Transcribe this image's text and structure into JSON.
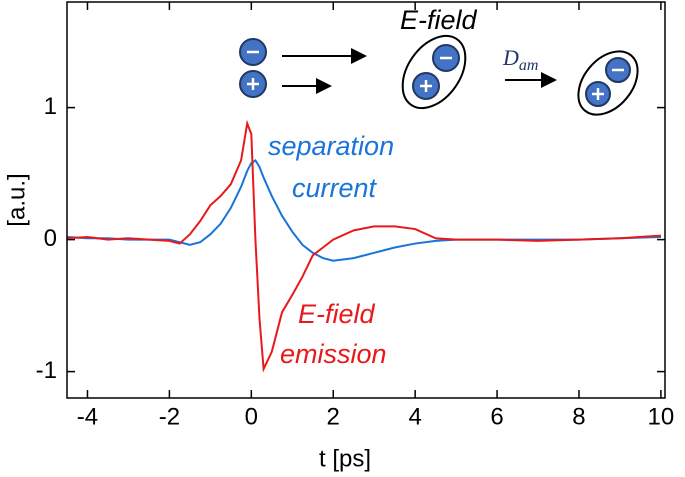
{
  "chart_data": {
    "type": "line",
    "xlabel": "t [ps]",
    "ylabel": "[a.u.]",
    "x": [
      -4.5,
      -4,
      -3.5,
      -3,
      -2.5,
      -2,
      -1.75,
      -1.5,
      -1.25,
      -1,
      -0.75,
      -0.5,
      -0.25,
      -0.1,
      0,
      0.1,
      0.2,
      0.3,
      0.5,
      0.75,
      1,
      1.25,
      1.5,
      1.75,
      2,
      2.5,
      3,
      3.5,
      4,
      4.5,
      5,
      6,
      7,
      8,
      9,
      10
    ],
    "series": [
      {
        "color": "#1a73d9",
        "values": [
          0.02,
          0.01,
          0.01,
          0,
          0,
          0,
          -0.02,
          -0.04,
          -0.02,
          0.04,
          0.12,
          0.24,
          0.4,
          0.52,
          0.58,
          0.6,
          0.55,
          0.47,
          0.33,
          0.18,
          0.06,
          -0.04,
          -0.1,
          -0.14,
          -0.16,
          -0.14,
          -0.1,
          -0.06,
          -0.03,
          -0.01,
          0,
          0,
          0,
          0,
          0.01,
          0.02
        ]
      },
      {
        "color": "#e8191c",
        "values": [
          0.01,
          0.02,
          0,
          0.01,
          0,
          -0.01,
          -0.03,
          0.04,
          0.14,
          0.26,
          0.33,
          0.42,
          0.6,
          0.88,
          0.8,
          0,
          -0.6,
          -0.98,
          -0.85,
          -0.55,
          -0.42,
          -0.28,
          -0.12,
          -0.06,
          0,
          0.07,
          0.1,
          0.1,
          0.08,
          0.01,
          0,
          0,
          -0.01,
          0,
          0.01,
          0.03
        ]
      }
    ],
    "xlim": [
      -4.5,
      10.1
    ],
    "ylim": [
      -1.2,
      1.8
    ],
    "xticks": [
      -4,
      -2,
      0,
      2,
      4,
      6,
      8,
      10
    ],
    "yticks": [
      -1,
      0,
      1
    ],
    "annotations": {
      "separation": "separation",
      "current": "current",
      "efield": "E-field",
      "emission": "emission",
      "top_efield": "E-field",
      "d": "D",
      "d_sub": "am"
    }
  }
}
